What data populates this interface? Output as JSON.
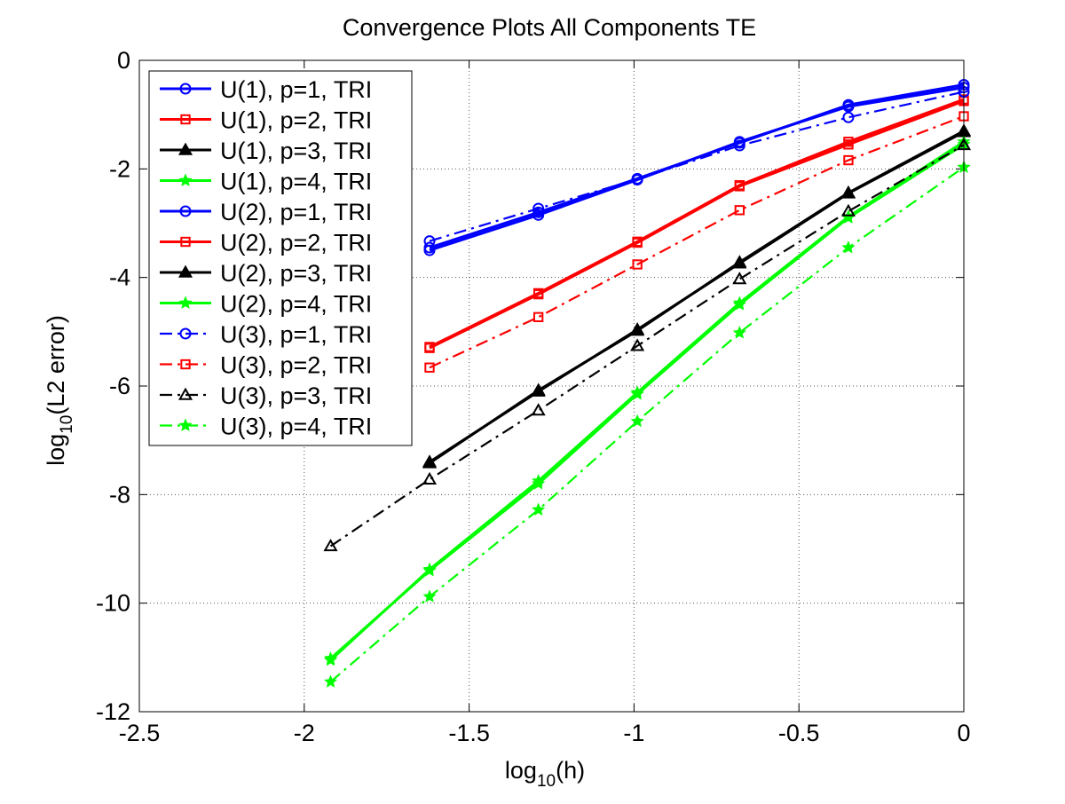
{
  "chart_data": {
    "type": "line",
    "title": "Convergence Plots All Components TE",
    "xlabel_base": "log",
    "xlabel_sub": "10",
    "xlabel_rest": "(h)",
    "ylabel_base": "log",
    "ylabel_sub": "10",
    "ylabel_rest": "(L2 error)",
    "xlim": [
      -2.5,
      0
    ],
    "ylim": [
      -12,
      0
    ],
    "xticks": [
      -2.5,
      -2,
      -1.5,
      -1,
      -0.5,
      0
    ],
    "xtick_labels": [
      "-2.5",
      "-2",
      "-1.5",
      "-1",
      "-0.5",
      "0"
    ],
    "yticks": [
      -12,
      -10,
      -8,
      -6,
      -4,
      -2,
      0
    ],
    "ytick_labels": [
      "-12",
      "-10",
      "-8",
      "-6",
      "-4",
      "-2",
      "0"
    ],
    "grid": true,
    "legend_position": "top-left",
    "x": [
      -1.92,
      -1.62,
      -1.29,
      -0.99,
      -0.68,
      -0.35,
      0
    ],
    "series": [
      {
        "name": "U(1), p=1, TRI",
        "color": "#0000ff",
        "marker": "circle",
        "filled": false,
        "dash": "solid",
        "y": [
          null,
          -3.5,
          -2.85,
          -2.2,
          -1.5,
          -0.85,
          -0.5
        ]
      },
      {
        "name": "U(1), p=2, TRI",
        "color": "#ff0000",
        "marker": "square",
        "filled": false,
        "dash": "solid",
        "y": [
          null,
          -5.28,
          -4.29,
          -3.34,
          -2.3,
          -1.5,
          -0.72
        ]
      },
      {
        "name": "U(1), p=3, TRI",
        "color": "#000000",
        "marker": "triangle",
        "filled": true,
        "dash": "solid",
        "y": [
          null,
          -7.4,
          -6.1,
          -4.96,
          -3.74,
          -2.45,
          -1.32
        ]
      },
      {
        "name": "U(1), p=4, TRI",
        "color": "#00ff00",
        "marker": "star",
        "filled": true,
        "dash": "solid",
        "y": [
          -11.05,
          -9.38,
          -7.75,
          -6.12,
          -4.47,
          -2.88,
          -1.5
        ]
      },
      {
        "name": "U(2), p=1, TRI",
        "color": "#0000ff",
        "marker": "circle",
        "filled": false,
        "dash": "solid",
        "y": [
          null,
          -3.45,
          -2.8,
          -2.18,
          -1.52,
          -0.82,
          -0.45
        ]
      },
      {
        "name": "U(2), p=2, TRI",
        "color": "#ff0000",
        "marker": "square",
        "filled": false,
        "dash": "solid",
        "y": [
          null,
          -5.3,
          -4.31,
          -3.36,
          -2.32,
          -1.55,
          -0.75
        ]
      },
      {
        "name": "U(2), p=3, TRI",
        "color": "#000000",
        "marker": "triangle",
        "filled": true,
        "dash": "solid",
        "y": [
          null,
          -7.42,
          -6.08,
          -4.98,
          -3.72,
          -2.44,
          -1.3
        ]
      },
      {
        "name": "U(2), p=4, TRI",
        "color": "#00ff00",
        "marker": "star",
        "filled": true,
        "dash": "solid",
        "y": [
          -11.02,
          -9.4,
          -7.8,
          -6.15,
          -4.5,
          -2.9,
          -1.55
        ]
      },
      {
        "name": "U(3), p=1, TRI",
        "color": "#0000ff",
        "marker": "circle",
        "filled": false,
        "dash": "dashdot",
        "y": [
          null,
          -3.33,
          -2.73,
          -2.19,
          -1.57,
          -1.05,
          -0.58
        ]
      },
      {
        "name": "U(3), p=2, TRI",
        "color": "#ff0000",
        "marker": "square",
        "filled": false,
        "dash": "dashdot",
        "y": [
          null,
          -5.66,
          -4.73,
          -3.76,
          -2.76,
          -1.84,
          -1.03
        ]
      },
      {
        "name": "U(3), p=3, TRI",
        "color": "#000000",
        "marker": "triangle",
        "filled": false,
        "dash": "dashdot",
        "y": [
          -8.95,
          -7.72,
          -6.45,
          -5.26,
          -4.03,
          -2.78,
          -1.56
        ]
      },
      {
        "name": "U(3), p=4, TRI",
        "color": "#00ff00",
        "marker": "star",
        "filled": true,
        "dash": "dashdot",
        "y": [
          -11.45,
          -9.88,
          -8.28,
          -6.65,
          -5.02,
          -3.45,
          -1.97
        ]
      }
    ]
  }
}
